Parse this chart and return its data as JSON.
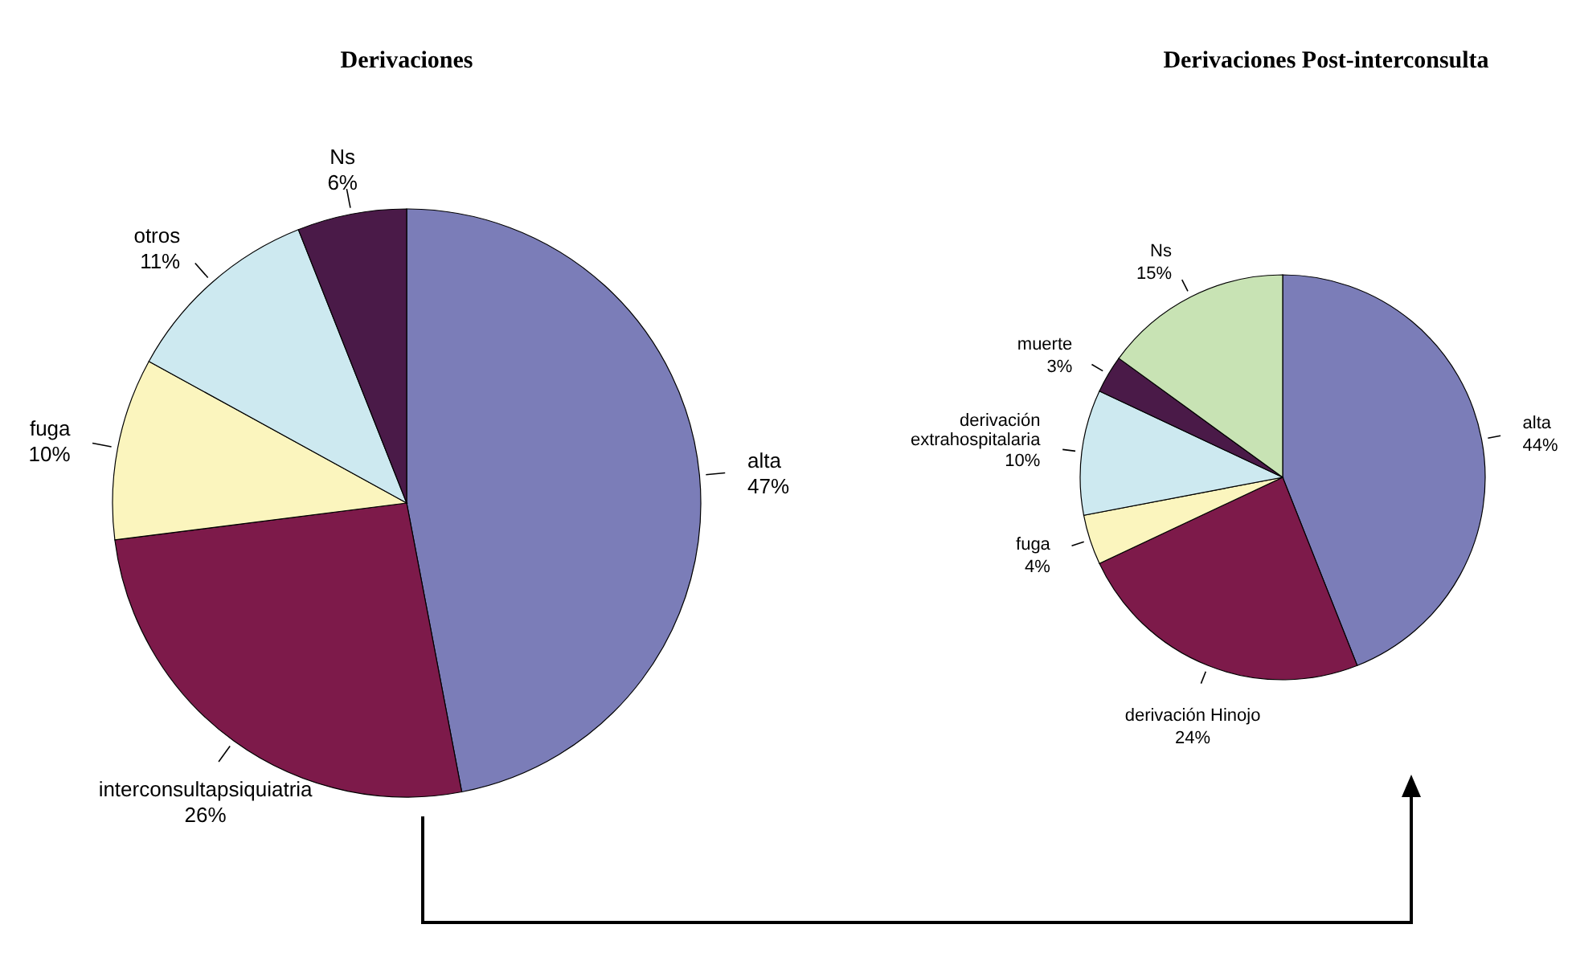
{
  "chart_data": [
    {
      "type": "pie",
      "title": "Derivaciones",
      "categories": [
        "alta",
        "interconsultapsiquiatria",
        "fuga",
        "otros",
        "Ns"
      ],
      "values": [
        47,
        26,
        10,
        11,
        6
      ],
      "colors": [
        "#7b7db8",
        "#7d1a4a",
        "#fbf5be",
        "#cde9f0",
        "#4a1a48"
      ],
      "value_labels": [
        "47%",
        "26%",
        "10%",
        "11%",
        "6%"
      ]
    },
    {
      "type": "pie",
      "title": "Derivaciones Post-interconsulta",
      "categories": [
        "alta",
        "derivación Hinojo",
        "fuga",
        "derivación extrahospitalaria",
        "muerte",
        "Ns"
      ],
      "values": [
        44,
        24,
        4,
        10,
        3,
        15
      ],
      "colors": [
        "#7b7db8",
        "#7d1a4a",
        "#fbf5be",
        "#cde9f0",
        "#4a1a48",
        "#c8e3b4"
      ],
      "value_labels": [
        "44%",
        "24%",
        "4%",
        "10%",
        "3%",
        "15%"
      ]
    }
  ]
}
